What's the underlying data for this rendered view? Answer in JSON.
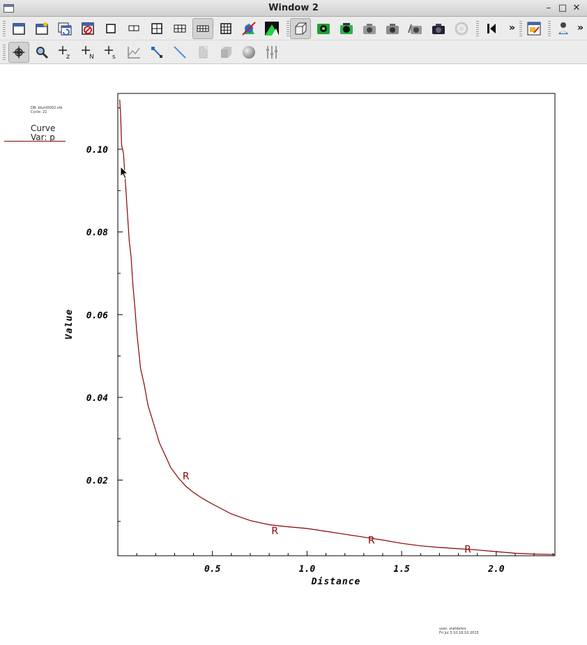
{
  "window": {
    "title": "Window 2"
  },
  "titlebar_buttons": [
    "–",
    "□",
    "✕"
  ],
  "toolbar1": {
    "items": [
      {
        "name": "new-window-icon"
      },
      {
        "name": "open-window-icon"
      },
      {
        "name": "refresh-window-icon"
      },
      {
        "name": "delete-window-icon"
      },
      {
        "name": "layout-1x1-icon"
      },
      {
        "name": "layout-1x2-icon"
      },
      {
        "name": "layout-2x2-icon"
      },
      {
        "name": "layout-2x3-icon"
      },
      {
        "name": "layout-2x4-icon",
        "pressed": true
      },
      {
        "name": "layout-3x3-icon"
      },
      {
        "name": "spin-icon"
      },
      {
        "name": "invert-background-icon"
      },
      {
        "name": "view-3d-box-icon",
        "pressed": true
      },
      {
        "name": "lock-view-icon"
      },
      {
        "name": "lock-time-icon"
      },
      {
        "name": "camera-icon"
      },
      {
        "name": "camera-2-icon"
      },
      {
        "name": "camera-3-icon"
      },
      {
        "name": "camera-4-icon"
      },
      {
        "name": "camera-5-icon"
      },
      {
        "name": "rotate-disabled-icon"
      },
      {
        "name": "step-back-icon"
      },
      {
        "name": "more-icon"
      },
      {
        "name": "tools-icon"
      },
      {
        "name": "clear-pick-icon"
      }
    ],
    "more_label": "»"
  },
  "toolbar2": {
    "items": [
      {
        "name": "navigate-icon",
        "pressed": true
      },
      {
        "name": "zoom-icon"
      },
      {
        "name": "pick-zone-icon",
        "sub": "z"
      },
      {
        "name": "pick-node-icon",
        "sub": "N"
      },
      {
        "name": "pick-spreadsheet-icon",
        "sub": "s"
      },
      {
        "name": "curve-plot-icon"
      },
      {
        "name": "point-tool-icon"
      },
      {
        "name": "line-tool-icon"
      },
      {
        "name": "plane-tool-icon"
      },
      {
        "name": "box-tool-icon"
      },
      {
        "name": "sphere-tool-icon"
      },
      {
        "name": "axis-restrict-icon"
      }
    ]
  },
  "plot_meta": {
    "db_line1": "DB: blunt0002.vtk",
    "db_line2": "Cycle: 22",
    "legend_title": "Curve",
    "legend_var": "Var: p",
    "user_line1": "user: visitdemo",
    "user_line2": "Fri Jul 3 10:18:10 2015"
  },
  "chart_data": {
    "type": "line",
    "xlabel": "Distance",
    "ylabel": "Value",
    "xlim": [
      0.0,
      2.31
    ],
    "ylim": [
      0.0017,
      0.1135
    ],
    "xticks": [
      "0.5",
      "1.0",
      "1.5",
      "2.0"
    ],
    "yticks": [
      "0.02",
      "0.04",
      "0.06",
      "0.08",
      "0.10"
    ],
    "series": [
      {
        "color": "#8b0000",
        "x": [
          0.01,
          0.015,
          0.02,
          0.03,
          0.04,
          0.05,
          0.06,
          0.07,
          0.08,
          0.09,
          0.1,
          0.12,
          0.14,
          0.16,
          0.18,
          0.2,
          0.22,
          0.25,
          0.28,
          0.32,
          0.36,
          0.4,
          0.45,
          0.5,
          0.6,
          0.7,
          0.8,
          0.9,
          1.0,
          1.1,
          1.2,
          1.3,
          1.4,
          1.5,
          1.6,
          1.7,
          1.8,
          1.9,
          2.0,
          2.1,
          2.2,
          2.31
        ],
        "values": [
          0.112,
          0.108,
          0.101,
          0.099,
          0.092,
          0.085,
          0.078,
          0.074,
          0.067,
          0.062,
          0.056,
          0.047,
          0.043,
          0.038,
          0.035,
          0.032,
          0.029,
          0.026,
          0.023,
          0.0205,
          0.0185,
          0.017,
          0.0155,
          0.0142,
          0.0118,
          0.0102,
          0.0092,
          0.0087,
          0.0083,
          0.0076,
          0.0069,
          0.0062,
          0.0055,
          0.0047,
          0.0041,
          0.0037,
          0.0034,
          0.0031,
          0.0027,
          0.0023,
          0.0021,
          0.002
        ]
      }
    ],
    "markers": {
      "label": "R",
      "x": [
        0.36,
        0.83,
        1.34,
        1.85
      ],
      "values": [
        0.021,
        0.0078,
        0.0055,
        0.0033
      ]
    }
  }
}
